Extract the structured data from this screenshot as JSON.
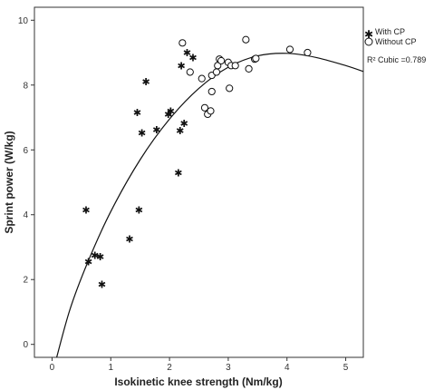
{
  "chart_data": {
    "type": "scatter",
    "title": "",
    "xlabel": "Isokinetic knee strength (Nm/kg)",
    "ylabel": "Sprint power (W/kg)",
    "xlim": [
      -0.3,
      5.3
    ],
    "ylim": [
      -0.4,
      10.4
    ],
    "x_ticks": [
      0,
      1,
      2,
      3,
      4,
      5
    ],
    "x_tick_labels": [
      "0",
      "1",
      "2",
      "3",
      "4",
      "5"
    ],
    "y_ticks": [
      0,
      2,
      4,
      6,
      8,
      10
    ],
    "y_tick_labels": [
      "0",
      "2",
      "4",
      "6",
      "8",
      "10"
    ],
    "grid": false,
    "legend_position": "top-right",
    "series": [
      {
        "name": "With CP",
        "marker": "asterisk",
        "color": "#111111",
        "points": [
          [
            0.58,
            4.15
          ],
          [
            0.62,
            2.55
          ],
          [
            0.73,
            2.75
          ],
          [
            0.82,
            2.7
          ],
          [
            0.85,
            1.85
          ],
          [
            1.32,
            3.25
          ],
          [
            1.45,
            7.15
          ],
          [
            1.48,
            4.15
          ],
          [
            1.53,
            6.52
          ],
          [
            1.6,
            8.1
          ],
          [
            1.78,
            6.62
          ],
          [
            1.98,
            7.1
          ],
          [
            2.02,
            7.2
          ],
          [
            2.15,
            5.3
          ],
          [
            2.18,
            6.6
          ],
          [
            2.2,
            8.6
          ],
          [
            2.25,
            6.82
          ],
          [
            2.3,
            9.0
          ],
          [
            2.4,
            8.85
          ]
        ]
      },
      {
        "name": "Without CP",
        "marker": "circle",
        "color": "#111111",
        "points": [
          [
            2.22,
            9.3
          ],
          [
            2.35,
            8.4
          ],
          [
            2.55,
            8.2
          ],
          [
            2.6,
            7.3
          ],
          [
            2.65,
            7.1
          ],
          [
            2.7,
            7.2
          ],
          [
            2.72,
            8.3
          ],
          [
            2.72,
            7.8
          ],
          [
            2.8,
            8.4
          ],
          [
            2.82,
            8.6
          ],
          [
            2.85,
            8.8
          ],
          [
            2.88,
            8.75
          ],
          [
            3.0,
            8.7
          ],
          [
            3.02,
            7.9
          ],
          [
            3.05,
            8.6
          ],
          [
            3.12,
            8.6
          ],
          [
            3.3,
            9.4
          ],
          [
            3.35,
            8.5
          ],
          [
            3.45,
            8.8
          ],
          [
            3.47,
            8.82
          ],
          [
            4.05,
            9.1
          ],
          [
            4.35,
            9.0
          ]
        ]
      }
    ],
    "fit": {
      "name": "Cubic",
      "r2_label": "R² Cubic =0.789",
      "curve": [
        [
          0.05,
          -0.6
        ],
        [
          0.3,
          1.05
        ],
        [
          0.6,
          2.5
        ],
        [
          1.0,
          4.1
        ],
        [
          1.5,
          5.7
        ],
        [
          2.0,
          6.95
        ],
        [
          2.5,
          7.9
        ],
        [
          3.0,
          8.55
        ],
        [
          3.5,
          8.9
        ],
        [
          4.0,
          8.98
        ],
        [
          4.5,
          8.85
        ],
        [
          5.0,
          8.6
        ],
        [
          5.3,
          8.42
        ]
      ]
    }
  }
}
